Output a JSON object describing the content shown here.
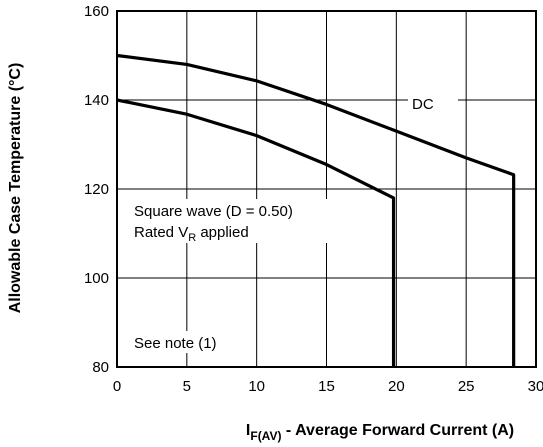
{
  "chart_data": {
    "type": "line",
    "xlabel_main": "I",
    "xlabel_sub": "F(AV)",
    "xlabel_rest": " - Average Forward Current (A)",
    "ylabel": "Allowable Case Temperature (°C)",
    "xlim": [
      0,
      30
    ],
    "ylim": [
      80,
      160
    ],
    "x_ticks": [
      "0",
      "5",
      "10",
      "15",
      "20",
      "25",
      "30"
    ],
    "y_ticks": [
      "80",
      "100",
      "120",
      "140",
      "160"
    ],
    "grid": true,
    "series": [
      {
        "name": "DC",
        "x": [
          0,
          5,
          10,
          15,
          20,
          25,
          28.4,
          28.4
        ],
        "y": [
          150,
          148,
          144.3,
          139,
          133,
          127,
          123.2,
          80
        ]
      },
      {
        "name": "Square wave",
        "x": [
          0,
          5,
          10,
          15,
          19.8,
          19.8
        ],
        "y": [
          140,
          136.8,
          132,
          125.5,
          118,
          80
        ]
      }
    ],
    "annotations": {
      "dc_label": "DC",
      "square_line1": "Square wave (D = 0.50)",
      "rated_main": "Rated V",
      "rated_sub": "R",
      "rated_rest": " applied",
      "note": "See note (1)"
    }
  }
}
